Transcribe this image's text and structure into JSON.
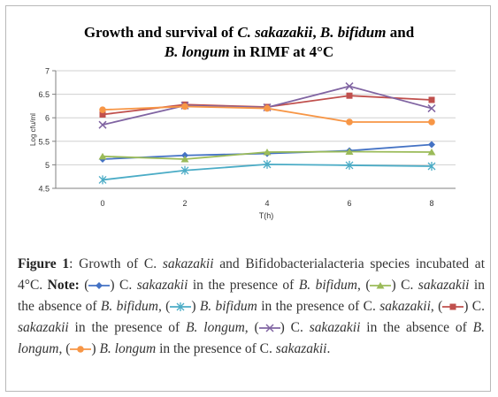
{
  "chart_data": {
    "type": "line",
    "title_parts": [
      {
        "text": "Growth and survival of ",
        "italic": false
      },
      {
        "text": "C. sakazakii",
        "italic": true
      },
      {
        "text": ", ",
        "italic": false
      },
      {
        "text": "B. bifidum",
        "italic": true
      },
      {
        "text": " and",
        "italic": false
      },
      {
        "text": "\n",
        "italic": false
      },
      {
        "text": "B. longum",
        "italic": true
      },
      {
        "text": " in RIMF at 4°C",
        "italic": false
      }
    ],
    "xlabel": "T(h)",
    "ylabel": "Log cfu/ml",
    "x": [
      0,
      2,
      4,
      6,
      8
    ],
    "x_ticks": [
      "0",
      "2",
      "4",
      "6",
      "8"
    ],
    "y_ticks": [
      "4.5",
      "5",
      "5.5",
      "6",
      "6.5",
      "7"
    ],
    "ylim": [
      4.5,
      7
    ],
    "grid": "horizontal",
    "legend": "none",
    "series": [
      {
        "values": [
          5.12,
          5.2,
          5.24,
          5.3,
          5.43
        ],
        "color": "#4472c4",
        "marker": "diamond"
      },
      {
        "values": [
          5.18,
          5.12,
          5.27,
          5.28,
          5.27
        ],
        "color": "#9bbb59",
        "marker": "triangle"
      },
      {
        "values": [
          4.68,
          4.88,
          5.01,
          4.99,
          4.97
        ],
        "color": "#4bacc6",
        "marker": "asterisk"
      },
      {
        "values": [
          6.07,
          6.28,
          6.23,
          6.47,
          6.38
        ],
        "color": "#c0504d",
        "marker": "square"
      },
      {
        "values": [
          5.85,
          6.26,
          6.22,
          6.67,
          6.2
        ],
        "color": "#8064a2",
        "marker": "cross"
      },
      {
        "values": [
          6.17,
          6.24,
          6.2,
          5.91,
          5.91
        ],
        "color": "#f79646",
        "marker": "circle"
      }
    ]
  },
  "caption": {
    "parts": [
      {
        "t": "Figure 1",
        "s": "b"
      },
      {
        "t": ": Growth of C. "
      },
      {
        "t": "sakazakii",
        "s": "i"
      },
      {
        "t": " and Bifidobacterialacteria species incubated at 4°C. "
      },
      {
        "t": "Note:",
        "s": "b"
      },
      {
        "t": " ("
      },
      {
        "m": 0
      },
      {
        "t": ") C. "
      },
      {
        "t": "sakazakii",
        "s": "i"
      },
      {
        "t": " in the presence of "
      },
      {
        "t": "B. bifidum",
        "s": "i"
      },
      {
        "t": ", ("
      },
      {
        "m": 1
      },
      {
        "t": ") C. "
      },
      {
        "t": "sakazakii",
        "s": "i"
      },
      {
        "t": " in the absence of "
      },
      {
        "t": "B. bifidum",
        "s": "i"
      },
      {
        "t": ", ("
      },
      {
        "m": 2
      },
      {
        "t": ") "
      },
      {
        "t": "B. bifidum",
        "s": "i"
      },
      {
        "t": " in the presence of C. "
      },
      {
        "t": "sakazakii",
        "s": "i"
      },
      {
        "t": ", ("
      },
      {
        "m": 3
      },
      {
        "t": ") C. "
      },
      {
        "t": "sakazakii",
        "s": "i"
      },
      {
        "t": " in the presence of "
      },
      {
        "t": "B. longum",
        "s": "i"
      },
      {
        "t": ", ("
      },
      {
        "m": 4
      },
      {
        "t": ") C. "
      },
      {
        "t": "sakazakii",
        "s": "i"
      },
      {
        "t": " in the absence of "
      },
      {
        "t": "B. longum",
        "s": "i"
      },
      {
        "t": ", ("
      },
      {
        "m": 5
      },
      {
        "t": ") "
      },
      {
        "t": "B. longum",
        "s": "i"
      },
      {
        "t": " in the presence of C. "
      },
      {
        "t": "sakazakii",
        "s": "i"
      },
      {
        "t": "."
      }
    ]
  }
}
